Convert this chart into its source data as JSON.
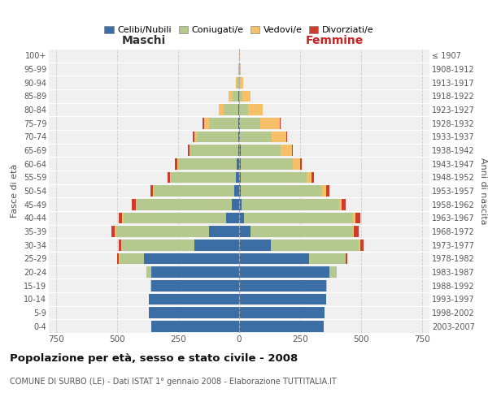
{
  "age_groups": [
    "0-4",
    "5-9",
    "10-14",
    "15-19",
    "20-24",
    "25-29",
    "30-34",
    "35-39",
    "40-44",
    "45-49",
    "50-54",
    "55-59",
    "60-64",
    "65-69",
    "70-74",
    "75-79",
    "80-84",
    "85-89",
    "90-94",
    "95-99",
    "100+"
  ],
  "birth_years": [
    "2003-2007",
    "1998-2002",
    "1993-1997",
    "1988-1992",
    "1983-1987",
    "1978-1982",
    "1973-1977",
    "1968-1972",
    "1963-1967",
    "1958-1962",
    "1953-1957",
    "1948-1952",
    "1943-1947",
    "1938-1942",
    "1933-1937",
    "1928-1932",
    "1923-1927",
    "1918-1922",
    "1913-1917",
    "1908-1912",
    "≤ 1907"
  ],
  "maschi": {
    "celibi": [
      360,
      370,
      370,
      360,
      360,
      390,
      185,
      125,
      55,
      30,
      20,
      15,
      10,
      5,
      5,
      5,
      2,
      2,
      1,
      0,
      0
    ],
    "coniugati": [
      0,
      0,
      0,
      5,
      20,
      100,
      295,
      380,
      420,
      390,
      330,
      265,
      240,
      195,
      170,
      120,
      60,
      25,
      8,
      3,
      1
    ],
    "vedovi": [
      0,
      0,
      0,
      0,
      0,
      5,
      5,
      5,
      5,
      5,
      5,
      5,
      5,
      5,
      10,
      20,
      20,
      15,
      5,
      2,
      0
    ],
    "divorziati": [
      0,
      0,
      0,
      0,
      0,
      5,
      10,
      15,
      15,
      15,
      10,
      8,
      8,
      5,
      5,
      5,
      2,
      0,
      0,
      0,
      0
    ]
  },
  "femmine": {
    "nubili": [
      345,
      350,
      355,
      355,
      370,
      285,
      130,
      45,
      20,
      10,
      5,
      5,
      5,
      5,
      2,
      2,
      1,
      1,
      0,
      0,
      0
    ],
    "coniugate": [
      0,
      0,
      0,
      5,
      30,
      150,
      360,
      420,
      445,
      400,
      335,
      270,
      215,
      165,
      130,
      85,
      35,
      12,
      4,
      1,
      0
    ],
    "vedove": [
      0,
      0,
      0,
      0,
      0,
      2,
      5,
      5,
      10,
      10,
      15,
      20,
      30,
      45,
      60,
      80,
      60,
      35,
      12,
      5,
      2
    ],
    "divorziate": [
      0,
      0,
      0,
      0,
      0,
      5,
      15,
      20,
      20,
      15,
      15,
      10,
      8,
      5,
      3,
      2,
      1,
      0,
      0,
      0,
      0
    ]
  },
  "colors": {
    "celibi": "#3a6ea5",
    "coniugati": "#b5c98e",
    "vedovi": "#f5c067",
    "divorziati": "#d03b2e"
  },
  "title": "Popolazione per età, sesso e stato civile - 2008",
  "subtitle": "COMUNE DI SURBO (LE) - Dati ISTAT 1° gennaio 2008 - Elaborazione TUTTITALIA.IT",
  "xlabel_left": "Maschi",
  "xlabel_right": "Femmine",
  "ylabel_left": "Fasce di età",
  "ylabel_right": "Anni di nascita",
  "xlim": 780,
  "legend_labels": [
    "Celibi/Nubili",
    "Coniugati/e",
    "Vedovi/e",
    "Divorziati/e"
  ],
  "legend_colors": [
    "#3a6ea5",
    "#b5c98e",
    "#f5c067",
    "#d03b2e"
  ]
}
